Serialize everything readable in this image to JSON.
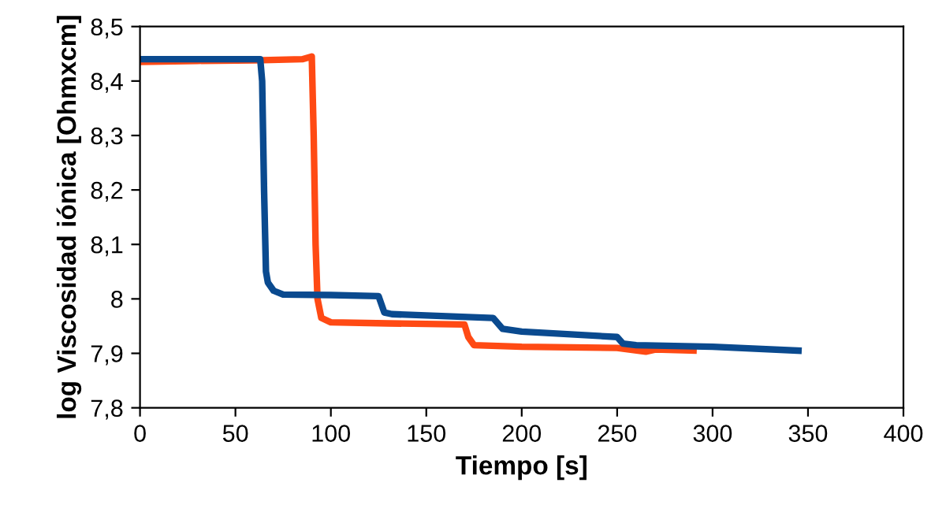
{
  "chart_data": {
    "type": "line",
    "xlabel": "Tiempo [s]",
    "ylabel": "log Viscosidad iónica [Ohmxcm]",
    "xlim": [
      0,
      400
    ],
    "xticks": [
      0,
      50,
      100,
      150,
      200,
      250,
      300,
      350,
      400
    ],
    "ylim": [
      7.8,
      8.5
    ],
    "yticks": [
      {
        "value": 7.8,
        "label": "7,8"
      },
      {
        "value": 7.9,
        "label": "7,9"
      },
      {
        "value": 8.0,
        "label": "8"
      },
      {
        "value": 8.1,
        "label": "8,1"
      },
      {
        "value": 8.2,
        "label": "8,2"
      },
      {
        "value": 8.3,
        "label": "8,3"
      },
      {
        "value": 8.4,
        "label": "8,4"
      },
      {
        "value": 8.5,
        "label": "8,5"
      }
    ],
    "grid": false,
    "legend": false,
    "marker": "none",
    "line_style": "solid",
    "series": [
      {
        "color": "#ff4a14",
        "x": [
          0,
          30,
          60,
          85,
          90,
          91,
          92,
          93,
          95,
          100,
          130,
          170,
          172,
          175,
          200,
          250,
          265,
          270,
          290
        ],
        "values": [
          8.435,
          8.437,
          8.438,
          8.44,
          8.445,
          8.3,
          8.1,
          8.0,
          7.965,
          7.957,
          7.955,
          7.953,
          7.93,
          7.915,
          7.912,
          7.91,
          7.903,
          7.907,
          7.905
        ]
      },
      {
        "color": "#0a4a8f",
        "x": [
          0,
          30,
          63,
          64,
          65,
          66,
          67,
          70,
          75,
          100,
          125,
          128,
          132,
          185,
          190,
          200,
          250,
          253,
          260,
          300,
          345
        ],
        "values": [
          8.44,
          8.44,
          8.44,
          8.4,
          8.2,
          8.05,
          8.03,
          8.015,
          8.008,
          8.007,
          8.005,
          7.975,
          7.972,
          7.965,
          7.945,
          7.94,
          7.93,
          7.918,
          7.915,
          7.912,
          7.905
        ]
      }
    ]
  }
}
